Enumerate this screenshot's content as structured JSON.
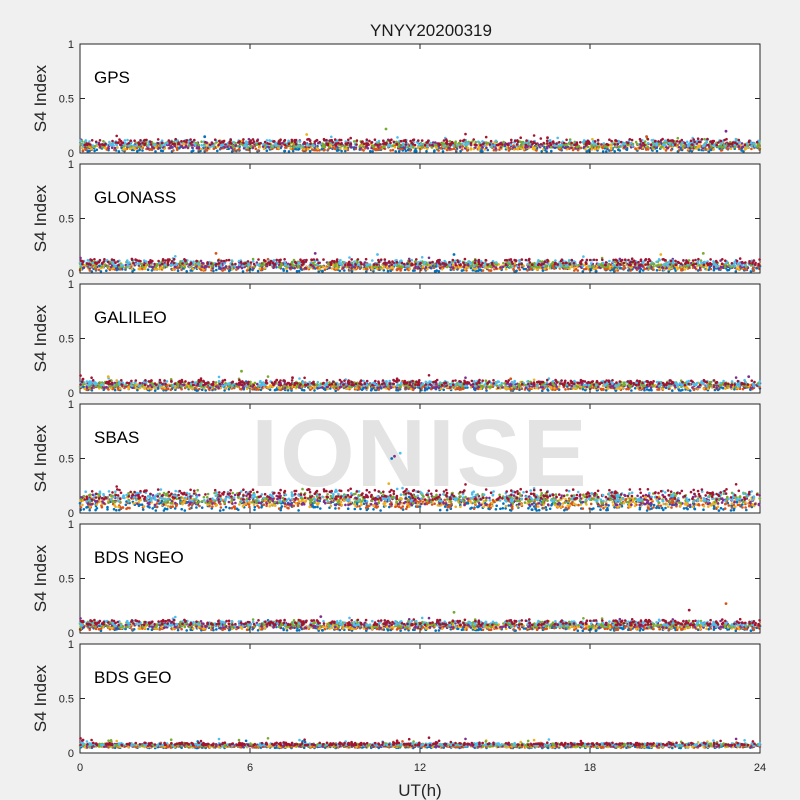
{
  "chart_data": {
    "type": "scatter",
    "title": "YNYY20200319",
    "xlabel": "UT(h)",
    "ylabel": "S4 Index",
    "xlim": [
      0,
      24
    ],
    "ylim": [
      0,
      1
    ],
    "xticks": [
      0,
      6,
      12,
      18,
      24
    ],
    "yticks": [
      0,
      0.5,
      1
    ],
    "ytick_labels": [
      "0",
      "0.5",
      "1"
    ],
    "grid": false,
    "watermark": "IONISE",
    "series_colors": [
      "#0072BD",
      "#D95319",
      "#EDB120",
      "#7E2F8E",
      "#77AC30",
      "#4DBEEE",
      "#A2142F"
    ],
    "panels": [
      {
        "name": "GPS",
        "base": 0.07,
        "spread": 0.035,
        "spikes": [
          [
            4.4,
            0.15
          ],
          [
            8.0,
            0.17
          ],
          [
            10.8,
            0.22
          ],
          [
            16.5,
            0.14
          ],
          [
            20.0,
            0.15
          ],
          [
            22.8,
            0.2
          ]
        ]
      },
      {
        "name": "GLONASS",
        "base": 0.07,
        "spread": 0.035,
        "spikes": [
          [
            4.8,
            0.18
          ],
          [
            8.3,
            0.18
          ],
          [
            10.5,
            0.17
          ],
          [
            13.2,
            0.17
          ],
          [
            20.5,
            0.17
          ],
          [
            22.0,
            0.18
          ]
        ]
      },
      {
        "name": "GALILEO",
        "base": 0.07,
        "spread": 0.03,
        "spikes": [
          [
            1.0,
            0.15
          ],
          [
            5.7,
            0.2
          ],
          [
            7.5,
            0.14
          ],
          [
            15.2,
            0.13
          ],
          [
            23.6,
            0.15
          ]
        ]
      },
      {
        "name": "SBAS",
        "base": 0.12,
        "spread": 0.06,
        "spikes": [
          [
            11.1,
            0.52
          ],
          [
            11.3,
            0.55
          ],
          [
            11.0,
            0.5
          ],
          [
            10.9,
            0.27
          ]
        ]
      },
      {
        "name": "BDS NGEO",
        "base": 0.07,
        "spread": 0.03,
        "spikes": [
          [
            13.2,
            0.19
          ],
          [
            21.5,
            0.21
          ],
          [
            22.8,
            0.27
          ],
          [
            8.5,
            0.15
          ]
        ]
      },
      {
        "name": "BDS GEO",
        "base": 0.07,
        "spread": 0.015,
        "spikes": []
      }
    ]
  }
}
